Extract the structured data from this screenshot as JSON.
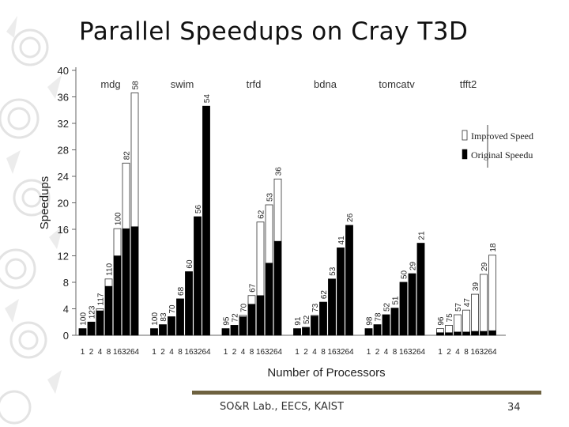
{
  "slide": {
    "title": "Parallel Speedups on Cray T3D",
    "footer": "SO&R Lab., EECS, KAIST",
    "page_number": "34"
  },
  "chart_data": {
    "type": "bar",
    "ylabel": "Speedups",
    "xlabel": "Number of Processors",
    "ylim": [
      0,
      40
    ],
    "yticks": [
      0,
      4,
      8,
      12,
      16,
      20,
      24,
      28,
      32,
      36,
      40
    ],
    "processor_labels": [
      "1",
      "2",
      "4",
      "8",
      "16",
      "32",
      "64"
    ],
    "legend": {
      "placement": "right",
      "items": [
        "Improved Speed",
        "Original Speedu"
      ]
    },
    "colors": {
      "improved": "#ffffff",
      "original": "#000000"
    },
    "groups": [
      {
        "name": "mdg",
        "improved": [
          1,
          2.0,
          4.0,
          8.5,
          16.1,
          26.0,
          36.6
        ],
        "original": [
          1,
          2.0,
          3.7,
          7.4,
          12.0,
          16.1,
          16.4
        ],
        "labels": [
          "100",
          "123",
          "117",
          "110",
          "100",
          "82",
          "58"
        ]
      },
      {
        "name": "swim",
        "improved": [
          1,
          1.6,
          2.8,
          5.5,
          9.6,
          17.9,
          34.6
        ],
        "original": [
          1,
          1.6,
          2.8,
          5.5,
          9.6,
          17.9,
          34.6
        ],
        "labels": [
          "100",
          "83",
          "70",
          "68",
          "60",
          "56",
          "54"
        ]
      },
      {
        "name": "trfd",
        "improved": [
          1,
          1.5,
          3.0,
          6.0,
          17.1,
          19.7,
          23.6
        ],
        "original": [
          1,
          1.5,
          2.8,
          4.7,
          6.0,
          10.9,
          14.2
        ],
        "labels": [
          "95",
          "72",
          "70",
          "67",
          "62",
          "53",
          "36"
        ]
      },
      {
        "name": "bdna",
        "improved": [
          1,
          1.2,
          3.0,
          5.0,
          8.5,
          13.2,
          16.6
        ],
        "original": [
          1,
          1.2,
          2.9,
          5.0,
          8.5,
          13.2,
          16.6
        ],
        "labels": [
          "91",
          "52",
          "73",
          "62",
          "53",
          "41",
          "26"
        ]
      },
      {
        "name": "tomcatv",
        "improved": [
          1,
          1.6,
          3.1,
          4.1,
          8.0,
          9.3,
          13.9
        ],
        "original": [
          1,
          1.6,
          3.1,
          4.1,
          8.0,
          9.3,
          13.9
        ],
        "labels": [
          "98",
          "78",
          "52",
          "51",
          "50",
          "29",
          "21"
        ]
      },
      {
        "name": "tfft2",
        "improved": [
          1,
          1.5,
          3.1,
          3.8,
          6.2,
          9.2,
          12.1
        ],
        "original": [
          0.4,
          0.4,
          0.5,
          0.5,
          0.6,
          0.6,
          0.7
        ],
        "labels": [
          "96",
          "75",
          "57",
          "47",
          "39",
          "29",
          "18"
        ]
      }
    ]
  }
}
